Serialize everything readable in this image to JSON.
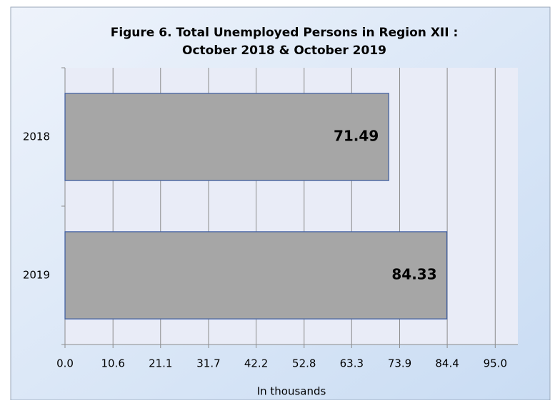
{
  "chart_data": {
    "type": "hbar",
    "title": [
      "Figure 6. Total Unemployed Persons in Region XII :",
      "October 2018 & October 2019"
    ],
    "categories": [
      "2018",
      "2019"
    ],
    "values": [
      71.49,
      84.33
    ],
    "color": "#a6a6a6",
    "xlabel": "In thousands",
    "xlim": [
      0,
      100
    ],
    "xticks": [
      {
        "value": 0,
        "label": "0.0"
      },
      10.6,
      21.1,
      31.7,
      42.2,
      52.8,
      63.3,
      73.9,
      84.4,
      {
        "value": 95,
        "label": "95.0"
      }
    ],
    "grid": true
  }
}
